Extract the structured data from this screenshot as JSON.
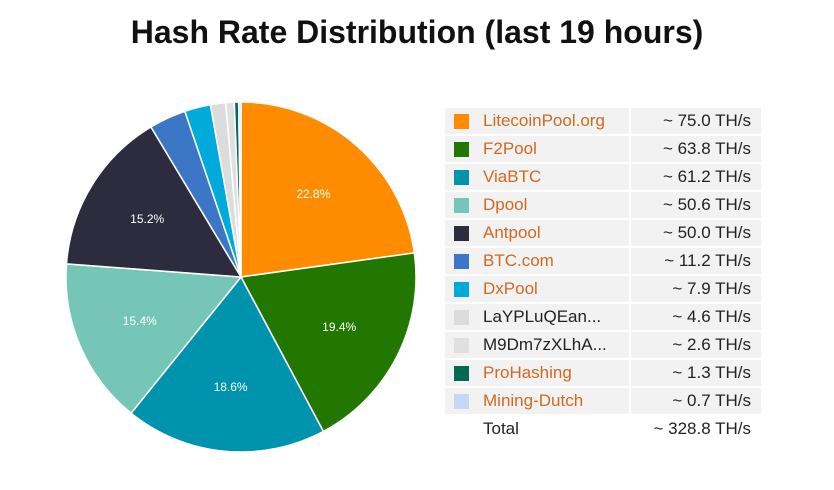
{
  "title": "Hash Rate Distribution (last 19 hours)",
  "chart_data": {
    "type": "pie",
    "title": "Hash Rate Distribution (last 19 hours)",
    "unit": "TH/s",
    "slices": [
      {
        "name": "LitecoinPool.org",
        "value": 75.0,
        "label": "22.8%",
        "color": "#ff8c00",
        "display": "~ 75.0 TH/s",
        "link": true,
        "percent_label": "22.8%"
      },
      {
        "name": "F2Pool",
        "value": 63.8,
        "label": "19.4%",
        "color": "#227700",
        "display": "~ 63.8 TH/s",
        "link": true,
        "percent_label": "19.4%"
      },
      {
        "name": "ViaBTC",
        "value": 61.2,
        "label": "18.6%",
        "color": "#0093ad",
        "display": "~ 61.2 TH/s",
        "link": true,
        "percent_label": "18.6%"
      },
      {
        "name": "Dpool",
        "value": 50.6,
        "label": "15.4%",
        "color": "#76c6b7",
        "display": "~ 50.6 TH/s",
        "link": true,
        "percent_label": "15.4%"
      },
      {
        "name": "Antpool",
        "value": 50.0,
        "label": "15.2%",
        "color": "#2c2c3e",
        "display": "~ 50.0 TH/s",
        "link": true,
        "percent_label": "15.2%"
      },
      {
        "name": "BTC.com",
        "value": 11.2,
        "label": "",
        "color": "#3c77c6",
        "display": "~ 11.2 TH/s",
        "link": true,
        "percent_label": ""
      },
      {
        "name": "DxPool",
        "value": 7.9,
        "label": "",
        "color": "#00abdb",
        "display": "~ 7.9 TH/s",
        "link": true,
        "percent_label": ""
      },
      {
        "name": "LaYPLuQEan...",
        "value": 4.6,
        "label": "",
        "color": "#dcdcdc",
        "display": "~ 4.6 TH/s",
        "link": false,
        "percent_label": ""
      },
      {
        "name": "M9Dm7zXLhA...",
        "value": 2.6,
        "label": "",
        "color": "#e0e0e0",
        "display": "~ 2.6 TH/s",
        "link": false,
        "percent_label": ""
      },
      {
        "name": "ProHashing",
        "value": 1.3,
        "label": "",
        "color": "#006b52",
        "display": "~ 1.3 TH/s",
        "link": true,
        "percent_label": ""
      },
      {
        "name": "Mining-Dutch",
        "value": 0.7,
        "label": "",
        "color": "#c5d9f7",
        "display": "~ 0.7 TH/s",
        "link": true,
        "percent_label": ""
      }
    ],
    "total": {
      "label": "Total",
      "display": "~ 328.8 TH/s",
      "value": 328.8
    },
    "legend_position": "right"
  }
}
